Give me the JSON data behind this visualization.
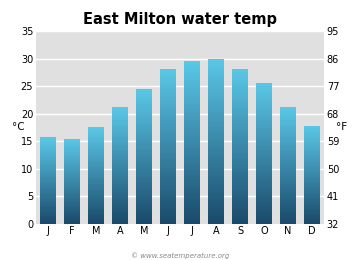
{
  "title": "East Milton water temp",
  "months": [
    "J",
    "F",
    "M",
    "A",
    "M",
    "J",
    "J",
    "A",
    "S",
    "O",
    "N",
    "D"
  ],
  "values_c": [
    15.7,
    15.4,
    17.5,
    21.2,
    24.5,
    28.1,
    29.5,
    30.0,
    28.2,
    25.6,
    21.2,
    17.8
  ],
  "ylim_c": [
    0,
    35
  ],
  "yticks_c": [
    0,
    5,
    10,
    15,
    20,
    25,
    30,
    35
  ],
  "ylim_f": [
    32,
    95
  ],
  "yticks_f": [
    32,
    41,
    50,
    59,
    68,
    77,
    86,
    95
  ],
  "ylabel_left": "°C",
  "ylabel_right": "°F",
  "bar_color_top": "#5bc8e8",
  "bar_color_bottom": "#1a4a6b",
  "background_color": "#ffffff",
  "plot_bg_color": "#e0e0e0",
  "grid_color": "#ffffff",
  "title_fontsize": 10.5,
  "axis_fontsize": 7.5,
  "tick_fontsize": 7,
  "watermark": "© www.seatemperature.org"
}
